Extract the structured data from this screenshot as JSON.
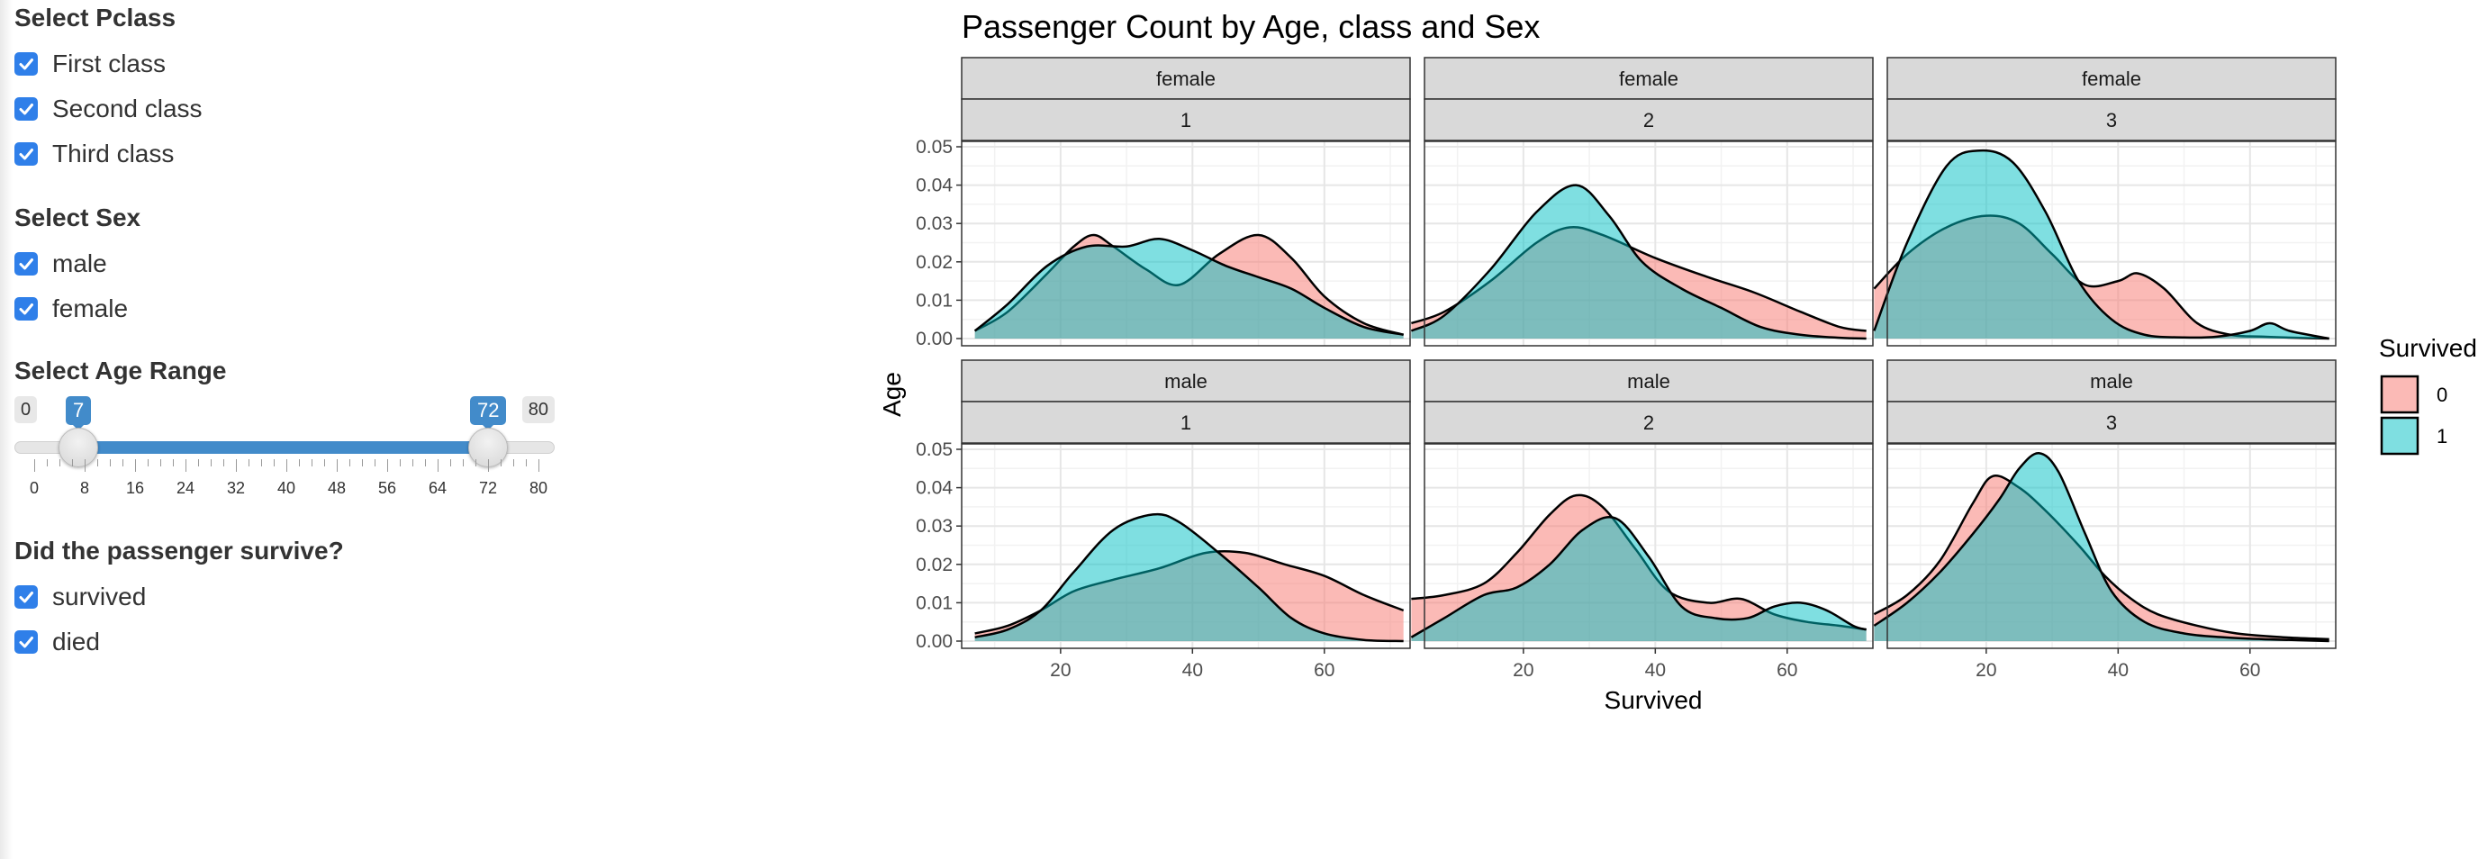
{
  "sidebar": {
    "pclass": {
      "label": "Select Pclass",
      "options": [
        {
          "label": "First class",
          "checked": true
        },
        {
          "label": "Second class",
          "checked": true
        },
        {
          "label": "Third class",
          "checked": true
        }
      ]
    },
    "sex": {
      "label": "Select Sex",
      "options": [
        {
          "label": "male",
          "checked": true
        },
        {
          "label": "female",
          "checked": true
        }
      ]
    },
    "age": {
      "label": "Select Age Range",
      "min": "0",
      "max": "80",
      "from": "7",
      "to": "72",
      "from_value": 7,
      "to_value": 72,
      "range": [
        0,
        80
      ],
      "tick_labels": [
        "0",
        "8",
        "16",
        "24",
        "32",
        "40",
        "48",
        "56",
        "64",
        "72",
        "80"
      ]
    },
    "survived": {
      "label": "Did the passenger survive?",
      "options": [
        {
          "label": "survived",
          "checked": true
        },
        {
          "label": "died",
          "checked": true
        }
      ]
    }
  },
  "accent_color": "#2f7fe9",
  "slider_color": "#428bca",
  "chart_data": {
    "type": "area",
    "subtype": "density (faceted)",
    "title": "Passenger Count by Age, class and Sex",
    "xlabel": "Survived",
    "ylabel": "Age",
    "xlim": [
      5,
      73
    ],
    "ylim": [
      0,
      0.05
    ],
    "x_ticks": [
      "20",
      "40",
      "60"
    ],
    "y_ticks": [
      "0.00",
      "0.01",
      "0.02",
      "0.03",
      "0.04",
      "0.05"
    ],
    "grid": true,
    "legend": {
      "title": "Survived",
      "position": "right",
      "entries": [
        "0",
        "1"
      ]
    },
    "colors": {
      "0": "#F8766D",
      "1": "#00BFC4"
    },
    "facets": [
      {
        "sex": "female",
        "pclass": "1",
        "series": [
          {
            "name": "0",
            "x": [
              7,
              12,
              18,
              22,
              25,
              28,
              33,
              38,
              44,
              50,
              55,
              60,
              66,
              72
            ],
            "y": [
              0.002,
              0.007,
              0.017,
              0.024,
              0.027,
              0.024,
              0.018,
              0.014,
              0.022,
              0.027,
              0.021,
              0.011,
              0.004,
              0.001
            ]
          },
          {
            "name": "1",
            "x": [
              7,
              12,
              18,
              24,
              30,
              35,
              40,
              45,
              50,
              55,
              60,
              66,
              72
            ],
            "y": [
              0.002,
              0.009,
              0.019,
              0.024,
              0.024,
              0.026,
              0.023,
              0.019,
              0.016,
              0.013,
              0.008,
              0.003,
              0.001
            ]
          }
        ]
      },
      {
        "sex": "female",
        "pclass": "2",
        "series": [
          {
            "name": "0",
            "x": [
              3,
              8,
              15,
              22,
              27,
              32,
              40,
              48,
              55,
              62,
              68,
              72
            ],
            "y": [
              0.004,
              0.007,
              0.015,
              0.025,
              0.029,
              0.027,
              0.021,
              0.016,
              0.012,
              0.007,
              0.003,
              0.002
            ]
          },
          {
            "name": "1",
            "x": [
              3,
              8,
              15,
              22,
              28,
              33,
              38,
              44,
              50,
              56,
              62,
              68,
              72
            ],
            "y": [
              0.002,
              0.006,
              0.018,
              0.033,
              0.04,
              0.032,
              0.02,
              0.013,
              0.008,
              0.003,
              0.001,
              0.0002,
              0.0
            ]
          }
        ]
      },
      {
        "sex": "female",
        "pclass": "3",
        "series": [
          {
            "name": "0",
            "x": [
              3,
              8,
              14,
              20,
              25,
              30,
              35,
              40,
              43,
              47,
              52,
              57,
              62,
              67,
              72
            ],
            "y": [
              0.013,
              0.022,
              0.029,
              0.032,
              0.03,
              0.022,
              0.014,
              0.015,
              0.017,
              0.013,
              0.004,
              0.001,
              0.0005,
              0.0002,
              0.0
            ]
          },
          {
            "name": "1",
            "x": [
              3,
              8,
              14,
              19,
              24,
              29,
              34,
              39,
              44,
              50,
              55,
              60,
              63,
              66,
              72
            ],
            "y": [
              0.002,
              0.025,
              0.045,
              0.049,
              0.046,
              0.033,
              0.015,
              0.005,
              0.001,
              0.0003,
              0.0005,
              0.002,
              0.004,
              0.002,
              0.0
            ]
          }
        ]
      },
      {
        "sex": "male",
        "pclass": "1",
        "series": [
          {
            "name": "0",
            "x": [
              7,
              12,
              17,
              22,
              28,
              35,
              42,
              48,
              54,
              60,
              66,
              72
            ],
            "y": [
              0.002,
              0.004,
              0.008,
              0.013,
              0.016,
              0.019,
              0.023,
              0.023,
              0.02,
              0.017,
              0.012,
              0.008
            ]
          },
          {
            "name": "1",
            "x": [
              7,
              12,
              17,
              22,
              28,
              34,
              38,
              44,
              50,
              55,
              60,
              66,
              72
            ],
            "y": [
              0.001,
              0.003,
              0.008,
              0.018,
              0.029,
              0.033,
              0.031,
              0.023,
              0.014,
              0.006,
              0.002,
              0.0003,
              0.0
            ]
          }
        ]
      },
      {
        "sex": "male",
        "pclass": "2",
        "series": [
          {
            "name": "0",
            "x": [
              3,
              8,
              14,
              19,
              24,
              28,
              32,
              37,
              42,
              48,
              53,
              58,
              63,
              68,
              72
            ],
            "y": [
              0.011,
              0.012,
              0.015,
              0.023,
              0.033,
              0.038,
              0.035,
              0.024,
              0.013,
              0.01,
              0.011,
              0.007,
              0.005,
              0.004,
              0.003
            ]
          },
          {
            "name": "1",
            "x": [
              3,
              8,
              14,
              19,
              24,
              29,
              34,
              39,
              44,
              49,
              54,
              58,
              62,
              66,
              70,
              72
            ],
            "y": [
              0.001,
              0.006,
              0.012,
              0.014,
              0.02,
              0.029,
              0.032,
              0.022,
              0.009,
              0.006,
              0.006,
              0.009,
              0.01,
              0.008,
              0.004,
              0.003
            ]
          }
        ]
      },
      {
        "sex": "male",
        "pclass": "3",
        "series": [
          {
            "name": "0",
            "x": [
              3,
              8,
              13,
              18,
              21,
              25,
              29,
              34,
              38,
              42,
              46,
              52,
              58,
              65,
              72
            ],
            "y": [
              0.007,
              0.012,
              0.021,
              0.036,
              0.043,
              0.04,
              0.034,
              0.025,
              0.017,
              0.011,
              0.007,
              0.004,
              0.002,
              0.001,
              0.0005
            ]
          },
          {
            "name": "1",
            "x": [
              3,
              8,
              13,
              18,
              22,
              25,
              28,
              31,
              35,
              39,
              44,
              50,
              56,
              62,
              68,
              72
            ],
            "y": [
              0.004,
              0.01,
              0.018,
              0.028,
              0.037,
              0.045,
              0.049,
              0.044,
              0.028,
              0.013,
              0.005,
              0.002,
              0.001,
              0.0005,
              0.0002,
              0.0
            ]
          }
        ]
      }
    ]
  }
}
